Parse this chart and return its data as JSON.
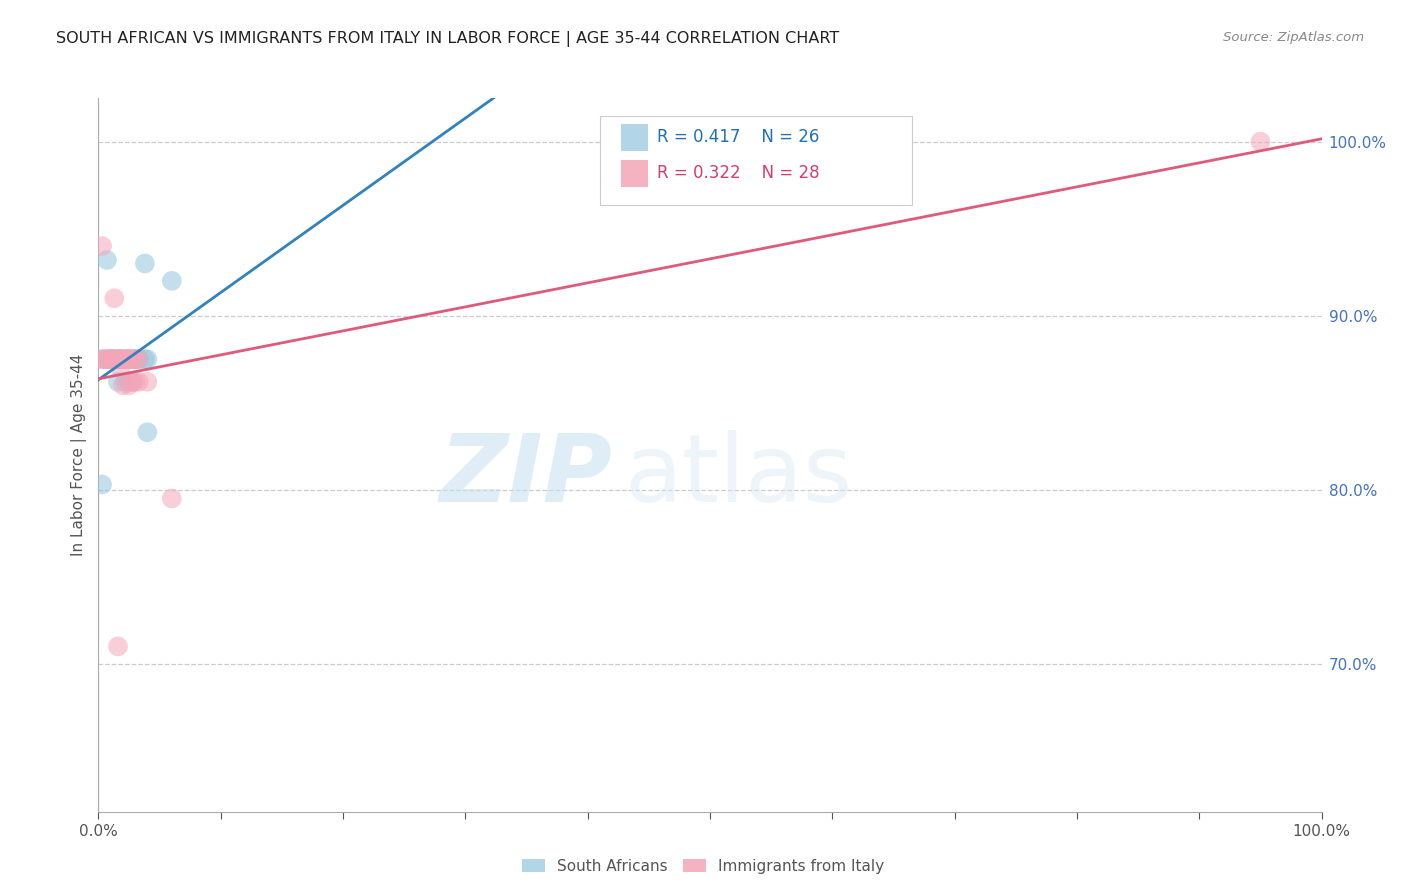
{
  "title": "SOUTH AFRICAN VS IMMIGRANTS FROM ITALY IN LABOR FORCE | AGE 35-44 CORRELATION CHART",
  "source": "Source: ZipAtlas.com",
  "ylabel": "In Labor Force | Age 35-44",
  "xlim": [
    0,
    1.0
  ],
  "ylim": [
    0.615,
    1.025
  ],
  "y_ticks_right": [
    0.7,
    0.8,
    0.9,
    1.0
  ],
  "y_tick_labels_right": [
    "70.0%",
    "80.0%",
    "90.0%",
    "100.0%"
  ],
  "blue_color": "#92c5de",
  "pink_color": "#f4a6b8",
  "blue_line_color": "#3182bd",
  "pink_line_color": "#e05a7a",
  "blue_r": 0.417,
  "blue_n": 26,
  "pink_r": 0.322,
  "pink_n": 28,
  "legend_label_blue": "South Africans",
  "legend_label_pink": "Immigrants from Italy",
  "watermark_zip": "ZIP",
  "watermark_atlas": "atlas",
  "sa_x": [
    0.003,
    0.008,
    0.01,
    0.01,
    0.013,
    0.013,
    0.016,
    0.016,
    0.018,
    0.018,
    0.022,
    0.022,
    0.025,
    0.025,
    0.028,
    0.028,
    0.03,
    0.03,
    0.033,
    0.038,
    0.04,
    0.04,
    0.003,
    0.007,
    0.038,
    0.06
  ],
  "sa_y": [
    0.875,
    0.875,
    0.875,
    0.875,
    0.875,
    0.875,
    0.875,
    0.862,
    0.875,
    0.875,
    0.875,
    0.862,
    0.875,
    0.862,
    0.875,
    0.862,
    0.875,
    0.875,
    0.875,
    0.875,
    0.833,
    0.875,
    0.803,
    0.932,
    0.93,
    0.92
  ],
  "it_x": [
    0.003,
    0.006,
    0.006,
    0.01,
    0.01,
    0.013,
    0.016,
    0.018,
    0.018,
    0.022,
    0.022,
    0.025,
    0.025,
    0.028,
    0.028,
    0.03,
    0.03,
    0.033,
    0.033,
    0.04,
    0.003,
    0.013,
    0.018,
    0.02,
    0.025,
    0.06,
    0.95,
    0.016
  ],
  "it_y": [
    0.875,
    0.875,
    0.875,
    0.875,
    0.875,
    0.875,
    0.875,
    0.875,
    0.875,
    0.875,
    0.875,
    0.875,
    0.875,
    0.875,
    0.862,
    0.862,
    0.875,
    0.875,
    0.862,
    0.862,
    0.94,
    0.91,
    0.87,
    0.86,
    0.86,
    0.795,
    1.0,
    0.71
  ]
}
